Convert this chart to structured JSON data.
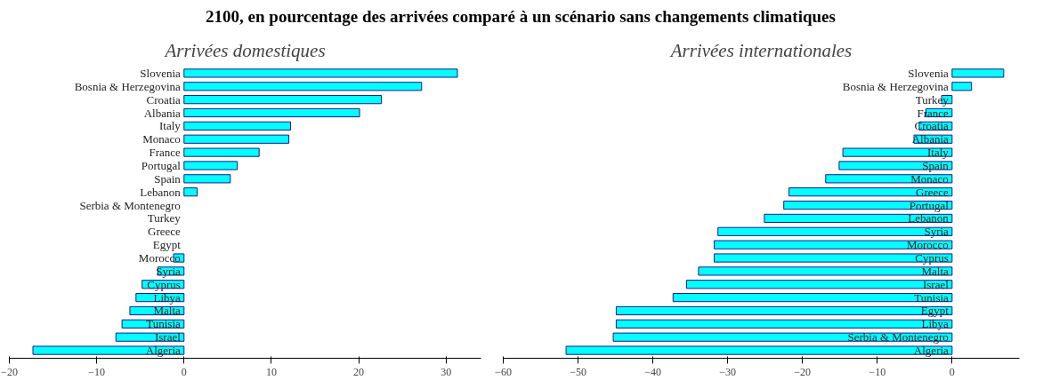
{
  "chart_data": [
    {
      "type": "bar",
      "orientation": "horizontal",
      "title": "Arrivées domestiques",
      "annotations": [
        "2100, en pourcentage des arrivées comparé à un scénario sans changements climatiques"
      ],
      "categories": [
        "Slovenia",
        "Bosnia & Herzegovina",
        "Croatia",
        "Albania",
        "Italy",
        "Monaco",
        "France",
        "Portugal",
        "Spain",
        "Lebanon",
        "Serbia & Montenegro",
        "Turkey",
        "Greece",
        "Egypt",
        "Morocco",
        "Syria",
        "Cyprus",
        "Libya",
        "Malta",
        "Tunisia",
        "Israel",
        "Algeria"
      ],
      "values": [
        31.3,
        27.2,
        22.6,
        20.1,
        12.2,
        12.0,
        8.6,
        6.1,
        5.3,
        1.5,
        0,
        0,
        0,
        0,
        -1.2,
        -3,
        -4.8,
        -5.5,
        -6.2,
        -7.1,
        -7.8,
        -17.3
      ],
      "color": "#00ffff",
      "xlim": [
        -20,
        34
      ],
      "xticks": [
        -20,
        -10,
        0,
        10,
        20,
        30
      ],
      "grid": false
    },
    {
      "type": "bar",
      "orientation": "horizontal",
      "title": "Arrivées internationales",
      "categories": [
        "Slovenia",
        "Bosnia & Herzegovina",
        "Turkey",
        "France",
        "Croatia",
        "Albania",
        "Italy",
        "Spain",
        "Monaco",
        "Greece",
        "Portugal",
        "Lebanon",
        "Syria",
        "Morocco",
        "Cyprus",
        "Malta",
        "Israel",
        "Tunisia",
        "Egypt",
        "Libya",
        "Serbia & Montenegro",
        "Algeria"
      ],
      "values": [
        6.9,
        2.6,
        -1.4,
        -3.5,
        -4.4,
        -5.1,
        -14.6,
        -15.1,
        -16.9,
        -21.8,
        -22.5,
        -25.1,
        -31.3,
        -31.8,
        -31.8,
        -33.9,
        -35.5,
        -37.3,
        -44.9,
        -44.9,
        -45.3,
        -51.6
      ],
      "color": "#00ffff",
      "xlim": [
        -60,
        9
      ],
      "xticks": [
        -60,
        -50,
        -40,
        -30,
        -20,
        -10,
        0
      ],
      "grid": false
    }
  ]
}
